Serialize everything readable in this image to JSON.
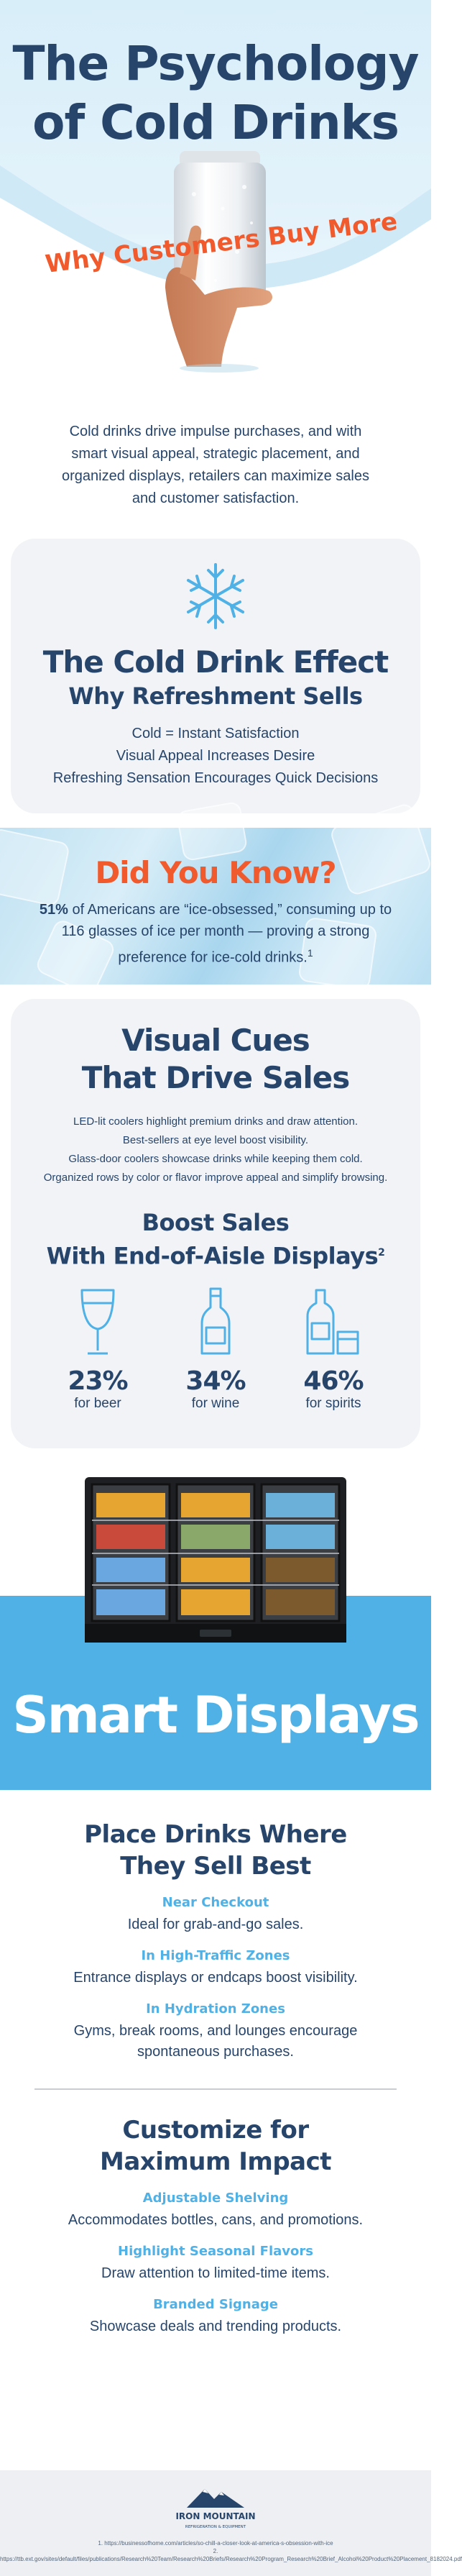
{
  "hero": {
    "title_line1": "The Psychology",
    "title_line2": "of Cold Drinks",
    "subtitle": "Why Customers Buy More"
  },
  "intro": "Cold drinks drive impulse purchases, and with smart visual appeal, strategic placement, and organized displays, retailers can maximize sales and customer satisfaction.",
  "effect": {
    "icon": "snowflake-icon",
    "title": "The Cold Drink Effect",
    "subtitle": "Why Refreshment Sells",
    "lines": [
      "Cold = Instant Satisfaction",
      "Visual Appeal Increases Desire",
      "Refreshing Sensation Encourages Quick Decisions"
    ]
  },
  "did_you_know": {
    "title": "Did You Know?",
    "stat": "51%",
    "text": " of Americans are “ice-obsessed,” consuming up to 116 glasses of ice per month — proving a strong preference for ice-cold drinks.",
    "footnote": "1"
  },
  "visual_cues": {
    "title_line1": "Visual Cues",
    "title_line2": "That Drive Sales",
    "lines": [
      "LED-lit coolers highlight premium drinks and draw attention.",
      "Best-sellers at eye level boost visibility.",
      "Glass-door coolers showcase drinks while keeping them cold.",
      "Organized rows by color or flavor improve appeal and simplify browsing."
    ],
    "boost_line1": "Boost Sales",
    "boost_line2": "With End-of-Aisle Displays",
    "boost_footnote": "2",
    "stats": [
      {
        "value": "23%",
        "label": "for beer",
        "icon": "beer-glass-icon"
      },
      {
        "value": "34%",
        "label": "for wine",
        "icon": "wine-bottle-icon"
      },
      {
        "value": "46%",
        "label": "for spirits",
        "icon": "spirits-bottle-icon"
      }
    ]
  },
  "smart": {
    "title": "Smart Displays",
    "place_title_line1": "Place Drinks Where",
    "place_title_line2": "They Sell Best",
    "places": [
      {
        "heading": "Near Checkout",
        "text": "Ideal for grab-and-go sales."
      },
      {
        "heading": "In High-Traffic Zones",
        "text": "Entrance displays or endcaps boost visibility."
      },
      {
        "heading": "In Hydration Zones",
        "text": "Gyms, break rooms, and lounges encourage spontaneous purchases."
      }
    ],
    "custom_title_line1": "Customize for",
    "custom_title_line2": "Maximum Impact",
    "customs": [
      {
        "heading": "Adjustable Shelving",
        "text": "Accommodates bottles, cans, and promotions."
      },
      {
        "heading": "Highlight Seasonal Flavors",
        "text": "Draw attention to limited-time items."
      },
      {
        "heading": "Branded Signage",
        "text": "Showcase deals and trending products."
      }
    ]
  },
  "footer": {
    "logo_text": "IRON MOUNTAIN",
    "logo_sub": "REFRIGERATION & EQUIPMENT",
    "ref1": "1. https://businessofhome.com/articles/so-chill-a-closer-look-at-america-s-obsession-with-ice",
    "ref2": "2. https://ttb.ext.gov/sites/default/files/publications/Research%20Team/Research%20Briefs/Research%20Program_Research%20Brief_Alcohol%20Product%20Placement_8182024.pdf"
  },
  "colors": {
    "navy": "#27456b",
    "orange": "#f05a2c",
    "sky": "#4fb1e5",
    "card": "#f1f3f6"
  }
}
